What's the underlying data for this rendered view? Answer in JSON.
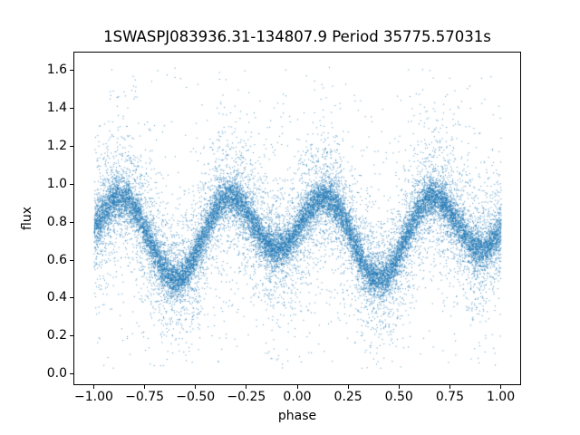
{
  "chart_data": {
    "type": "scatter",
    "title": "1SWASPJ083936.31-134807.9 Period 35775.57031s",
    "xlabel": "phase",
    "ylabel": "flux",
    "xlim": [
      -1.1,
      1.1
    ],
    "ylim": [
      -0.06,
      1.7
    ],
    "xtick_values": [
      -1.0,
      -0.75,
      -0.5,
      -0.25,
      0.0,
      0.25,
      0.5,
      0.75,
      1.0
    ],
    "xtick_labels": [
      "−1.00",
      "−0.75",
      "−0.50",
      "−0.25",
      "0.00",
      "0.25",
      "0.50",
      "0.75",
      "1.00"
    ],
    "ytick_values": [
      0.0,
      0.2,
      0.4,
      0.6,
      0.8,
      1.0,
      1.2,
      1.4,
      1.6
    ],
    "ytick_labels": [
      "0.0",
      "0.2",
      "0.4",
      "0.6",
      "0.8",
      "1.0",
      "1.2",
      "1.4",
      "1.6"
    ],
    "marker_color": "#1f77b4",
    "marker_alpha": 0.8,
    "background_color": "#ffffff",
    "grid": false,
    "legend": null,
    "n_points": 24000,
    "x_range": [
      -1.0,
      1.0
    ],
    "flux_clip": [
      0.03,
      1.63
    ],
    "mean_curve": {
      "form": "c0 + c1*cos(2*pi*(x-p0)) + c2*cos(4*pi*(x-p0))",
      "c0": 0.755,
      "c1": -0.08,
      "c2": -0.175,
      "p0": 0.4,
      "max_flux": 0.93,
      "max_phases_mod1": [
        0.15,
        0.65
      ],
      "primary_min": {
        "phase_mod1": 0.4,
        "flux": 0.5
      },
      "secondary_min": {
        "phase_mod1": 0.9,
        "flux": 0.66
      }
    },
    "noise_mixture": [
      {
        "fraction": 0.62,
        "sigma": 0.048
      },
      {
        "fraction": 0.3,
        "sigma": 0.16
      },
      {
        "fraction": 0.08,
        "sigma": 0.42
      }
    ],
    "seed": 42
  }
}
